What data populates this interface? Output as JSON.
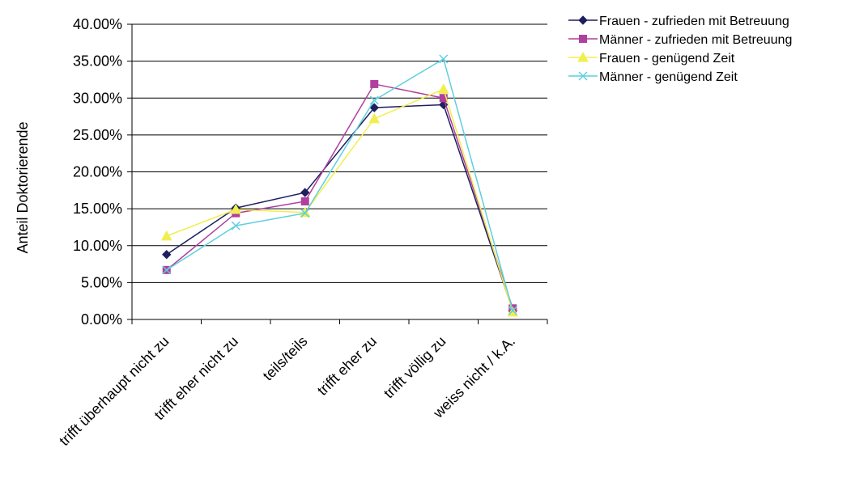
{
  "chart_data": {
    "type": "line",
    "ylabel": "Anteil Doktorierende",
    "ylim": [
      0,
      0.4
    ],
    "yticks": [
      "0.00%",
      "5.00%",
      "10.00%",
      "15.00%",
      "20.00%",
      "25.00%",
      "30.00%",
      "35.00%",
      "40.00%"
    ],
    "grid": "horizontal",
    "legend_position": "top-right",
    "categories": [
      "trifft überhaupt nicht zu",
      "trifft eher nicht zu",
      "teils/teils",
      "trifft eher zu",
      "trifft völlig zu",
      "weiss nicht / k.A."
    ],
    "series": [
      {
        "name": "Frauen - zufrieden mit Betreuung",
        "color": "#1f1f5f",
        "marker": "diamond",
        "values": [
          0.088,
          0.151,
          0.172,
          0.287,
          0.291,
          0.012
        ]
      },
      {
        "name": "Männer - zufrieden mit Betreuung",
        "color": "#b03f9f",
        "marker": "square",
        "values": [
          0.067,
          0.144,
          0.16,
          0.319,
          0.3,
          0.015
        ]
      },
      {
        "name": "Frauen - genügend Zeit",
        "color": "#f0ef4f",
        "marker": "triangle",
        "values": [
          0.113,
          0.149,
          0.145,
          0.272,
          0.312,
          0.01
        ]
      },
      {
        "name": "Männer - genügend Zeit",
        "color": "#5fcfdf",
        "marker": "x",
        "values": [
          0.067,
          0.127,
          0.144,
          0.297,
          0.353,
          0.012
        ]
      }
    ]
  }
}
